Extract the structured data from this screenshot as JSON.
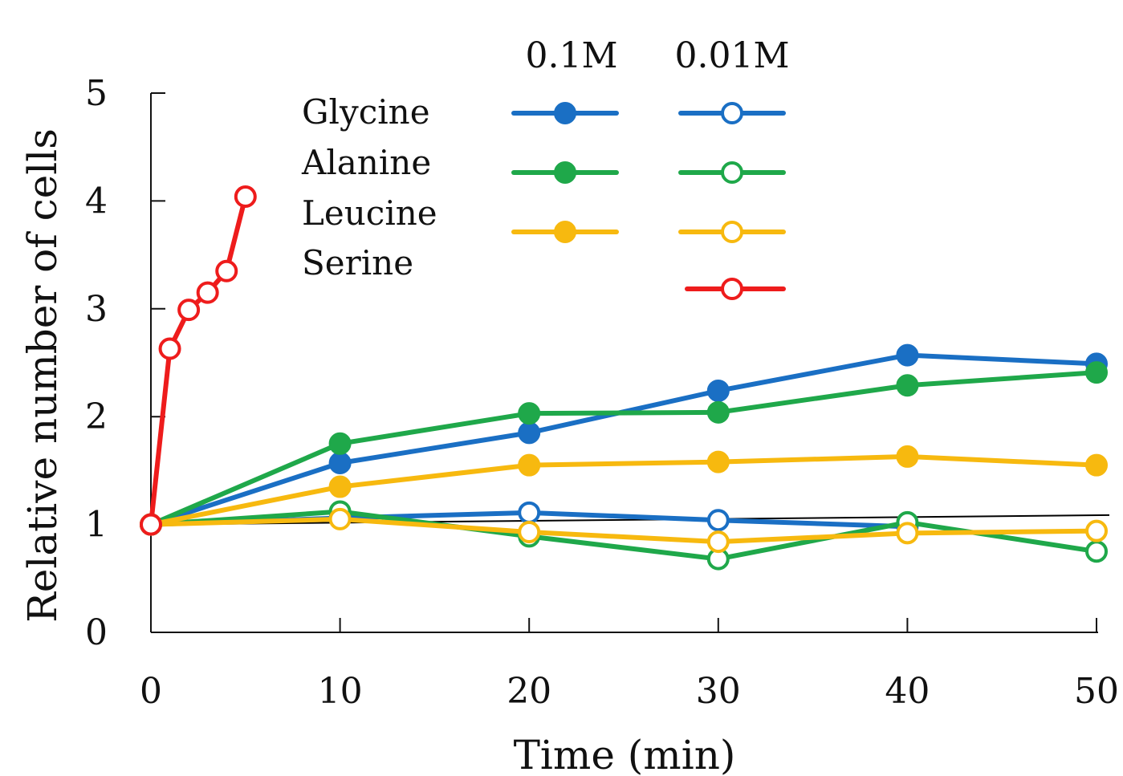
{
  "chart_data": {
    "type": "line",
    "xlabel": "Time (min)",
    "ylabel": "Relative number of cells",
    "xlim": [
      0,
      50
    ],
    "ylim": [
      0,
      5
    ],
    "xticks": [
      "0",
      "10",
      "20",
      "30",
      "40",
      "50"
    ],
    "yticks": [
      "0",
      "1",
      "2",
      "3",
      "4",
      "5"
    ],
    "grid": false,
    "legend": {
      "placement": "top",
      "column_headers": [
        "0.1M",
        "0.01M"
      ],
      "row_labels": [
        "Glycine",
        "Alanine",
        "Leucine",
        "Serine"
      ]
    },
    "reference_line": {
      "x": [
        0,
        50
      ],
      "y": [
        1.0,
        1.08
      ],
      "color": "#000000"
    },
    "series": [
      {
        "name": "Glycine",
        "concentration": "0.1M",
        "marker": "filled",
        "color": "#1a6fc4",
        "x": [
          0,
          10,
          20,
          30,
          40,
          50
        ],
        "y": [
          1.0,
          1.57,
          1.85,
          2.24,
          2.57,
          2.49
        ]
      },
      {
        "name": "Alanine",
        "concentration": "0.1M",
        "marker": "filled",
        "color": "#1fa84a",
        "x": [
          0,
          10,
          20,
          30,
          40,
          50
        ],
        "y": [
          1.0,
          1.75,
          2.03,
          2.04,
          2.29,
          2.41
        ]
      },
      {
        "name": "Leucine",
        "concentration": "0.1M",
        "marker": "filled",
        "color": "#f7b90f",
        "x": [
          0,
          10,
          20,
          30,
          40,
          50
        ],
        "y": [
          1.0,
          1.35,
          1.55,
          1.58,
          1.63,
          1.55
        ]
      },
      {
        "name": "Glycine",
        "concentration": "0.01M",
        "marker": "open",
        "color": "#1a6fc4",
        "x": [
          0,
          10,
          20,
          30,
          40
        ],
        "y": [
          1.0,
          1.06,
          1.11,
          1.04,
          0.98
        ]
      },
      {
        "name": "Alanine",
        "concentration": "0.01M",
        "marker": "open",
        "color": "#1fa84a",
        "x": [
          0,
          10,
          20,
          30,
          40,
          50
        ],
        "y": [
          1.0,
          1.12,
          0.89,
          0.68,
          1.02,
          0.75
        ]
      },
      {
        "name": "Leucine",
        "concentration": "0.01M",
        "marker": "open",
        "color": "#f7b90f",
        "x": [
          0,
          10,
          20,
          30,
          40,
          50
        ],
        "y": [
          1.0,
          1.05,
          0.93,
          0.84,
          0.92,
          0.94
        ]
      },
      {
        "name": "Serine",
        "concentration": "0.01M",
        "marker": "open",
        "color": "#ee1c1c",
        "x": [
          0,
          1,
          2,
          3,
          4,
          5
        ],
        "y": [
          1.0,
          2.63,
          2.99,
          3.15,
          3.35,
          4.04
        ]
      }
    ]
  }
}
